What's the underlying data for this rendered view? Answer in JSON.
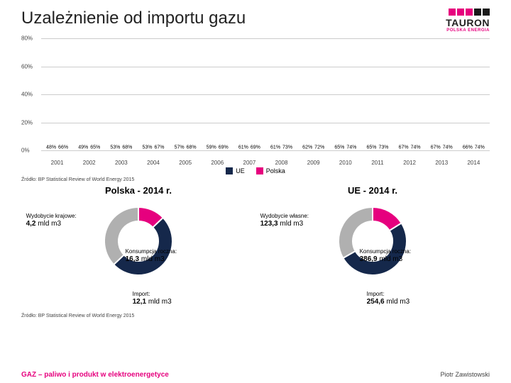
{
  "title": "Uzależnienie od importu gazu",
  "logo": {
    "name": "TAURON",
    "sub": "POLSKA ENERGIA",
    "colors": [
      "#e6007e",
      "#e6007e",
      "#e6007e",
      "#1a1a1a",
      "#1a1a1a"
    ]
  },
  "chart": {
    "type": "bar",
    "ylim": [
      0,
      80
    ],
    "ytick_step": 20,
    "y_ticks": [
      "0%",
      "20%",
      "40%",
      "60%",
      "80%"
    ],
    "grid_color": "#cccccc",
    "series": [
      {
        "name": "UE",
        "color": "#15284b"
      },
      {
        "name": "Polska",
        "color": "#e6007e"
      }
    ],
    "years": [
      "2001",
      "2002",
      "2003",
      "2004",
      "2005",
      "2006",
      "2007",
      "2008",
      "2009",
      "2010",
      "2011",
      "2012",
      "2013",
      "2014"
    ],
    "ue": [
      48,
      49,
      53,
      53,
      57,
      59,
      61,
      61,
      62,
      65,
      65,
      67,
      67,
      66
    ],
    "polska": [
      66,
      65,
      68,
      67,
      68,
      69,
      69,
      73,
      72,
      74,
      73,
      74,
      74,
      74
    ],
    "ue_labels": [
      "48%",
      "49%",
      "53%",
      "53%",
      "57%",
      "59%",
      "61%",
      "61%",
      "62%",
      "65%",
      "65%",
      "67%",
      "67%",
      "66%"
    ],
    "polska_labels": [
      "66%",
      "65%",
      "68%",
      "67%",
      "68%",
      "69%",
      "69%",
      "73%",
      "72%",
      "74%",
      "73%",
      "74%",
      "74%",
      "74%"
    ]
  },
  "source": "Źródło: BP Statistical Review of World Energy 2015",
  "donuts": {
    "left": {
      "title": "Polska - 2014 r.",
      "segments": [
        {
          "label_hdr": "Wydobycie krajowe:",
          "label_val": "4,2",
          "unit": "mld m3",
          "color": "#e6007e",
          "frac": 0.129
        },
        {
          "label_hdr": "Konsumpcja roczna:",
          "label_val": "16,3",
          "unit": "mld m3",
          "color": "#15284b",
          "frac": 0.5
        },
        {
          "label_hdr": "Import:",
          "label_val": "12,1",
          "unit": "mld m3",
          "color": "#b0b0b0",
          "frac": 0.371
        }
      ]
    },
    "right": {
      "title": "UE - 2014 r.",
      "segments": [
        {
          "label_hdr": "Wydobycie własne:",
          "label_val": "123,3",
          "unit": "mld m3",
          "color": "#e6007e",
          "frac": 0.161
        },
        {
          "label_hdr": "Konsumpcja roczna:",
          "label_val": "386,9",
          "unit": "mld m3",
          "color": "#15284b",
          "frac": 0.506
        },
        {
          "label_hdr": "Import:",
          "label_val": "254,6",
          "unit": "mld m3",
          "color": "#b0b0b0",
          "frac": 0.333
        }
      ]
    }
  },
  "footer": {
    "left": "GAZ – paliwo i produkt w elektroenergetyce",
    "right": "Piotr Zawistowski"
  }
}
